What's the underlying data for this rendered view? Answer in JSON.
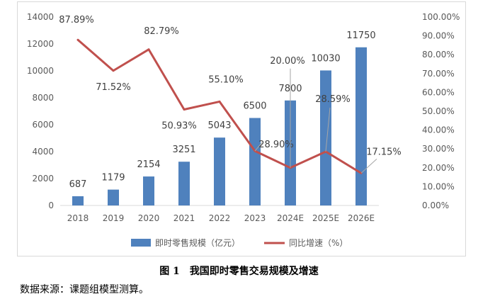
{
  "chart_data": {
    "type": "bar",
    "categories": [
      "2018",
      "2019",
      "2020",
      "2021",
      "2022",
      "2023",
      "2024E",
      "2025E",
      "2026E"
    ],
    "series": [
      {
        "name": "即时零售规模（亿元）",
        "type": "bar",
        "axis": "left",
        "color": "#4F81BD",
        "values": [
          687,
          1179,
          2154,
          3251,
          5043,
          6500,
          7800,
          10030,
          11750
        ],
        "labels": [
          "687",
          "1179",
          "2154",
          "3251",
          "5043",
          "6500",
          "7800",
          "10030",
          "11750"
        ]
      },
      {
        "name": "同比增速（%）",
        "type": "line",
        "axis": "right",
        "color": "#C0504D",
        "values": [
          87.89,
          71.52,
          82.79,
          50.93,
          55.1,
          28.9,
          20.0,
          28.59,
          17.15
        ],
        "labels": [
          "87.89%",
          "71.52%",
          "82.79%",
          "50.93%",
          "55.10%",
          "28.90%",
          "20.00%",
          "28.59%",
          "17.15%"
        ]
      }
    ],
    "left_axis": {
      "min": 0,
      "max": 14000,
      "step": 2000,
      "tick_labels": [
        "0",
        "2000",
        "4000",
        "6000",
        "8000",
        "10000",
        "12000",
        "14000"
      ]
    },
    "right_axis": {
      "min": 0,
      "max": 100,
      "step": 10,
      "tick_labels": [
        "0.00%",
        "10.00%",
        "20.00%",
        "30.00%",
        "40.00%",
        "50.00%",
        "60.00%",
        "70.00%",
        "80.00%",
        "90.00%",
        "100.00%"
      ]
    },
    "grid": false,
    "legend_position": "bottom"
  },
  "figure": {
    "number": "图 1",
    "title": "我国即时零售交易规模及增速"
  },
  "source_note": "数据来源：课题组模型测算。"
}
